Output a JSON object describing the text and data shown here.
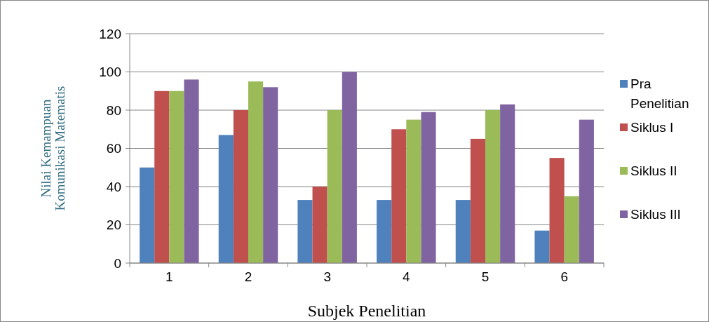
{
  "chart_data": {
    "type": "bar",
    "xlabel": "Subjek Penelitian",
    "ylabel": "Nilai Kemampuan\nKomunikasi Matematis",
    "categories": [
      "1",
      "2",
      "3",
      "4",
      "5",
      "6"
    ],
    "series": [
      {
        "name": "Pra Penelitian",
        "color": "#4f81bd",
        "values": [
          50,
          67,
          33,
          33,
          33,
          17
        ]
      },
      {
        "name": "Siklus I",
        "color": "#c0504d",
        "values": [
          90,
          80,
          40,
          70,
          65,
          55
        ]
      },
      {
        "name": "Siklus II",
        "color": "#9bbb59",
        "values": [
          90,
          95,
          80,
          75,
          80,
          35
        ]
      },
      {
        "name": "Siklus III",
        "color": "#8064a2",
        "values": [
          96,
          92,
          100,
          79,
          83,
          75
        ]
      }
    ],
    "ylim": [
      0,
      120
    ],
    "yticks": [
      0,
      20,
      40,
      60,
      80,
      100,
      120
    ],
    "grid": "y",
    "legend": "right"
  }
}
